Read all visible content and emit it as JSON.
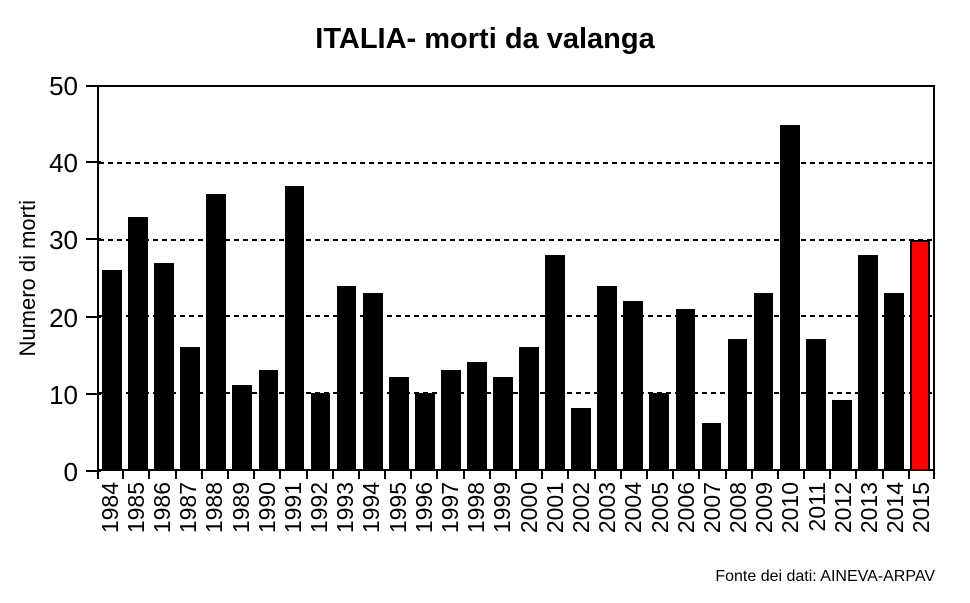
{
  "title": "ITALIA- morti da valanga",
  "footer": {
    "source_label": "Fonte dei dati: AINEVA-ARPAV"
  },
  "colors": {
    "bar": "#000000",
    "highlight": "#FF0000",
    "axis": "#000000",
    "background": "#FFFFFF"
  },
  "chart_data": {
    "type": "bar",
    "title": "ITALIA- morti da valanga",
    "xlabel": "",
    "ylabel": "Numero di morti",
    "ylim": [
      0,
      50
    ],
    "ytick_interval": 10,
    "yticks": [
      0,
      10,
      20,
      30,
      40,
      50
    ],
    "grid": "horizontal dashed black lines at 10, 20, 30, 40",
    "legend": "none",
    "categories": [
      "1984",
      "1985",
      "1986",
      "1987",
      "1988",
      "1989",
      "1990",
      "1991",
      "1992",
      "1993",
      "1994",
      "1995",
      "1996",
      "1997",
      "1998",
      "1999",
      "2000",
      "2001",
      "2002",
      "2003",
      "2004",
      "2005",
      "2006",
      "2007",
      "2008",
      "2009",
      "2010",
      "2011",
      "2012",
      "2013",
      "2014",
      "2015"
    ],
    "values": [
      26,
      33,
      27,
      16,
      36,
      11,
      13,
      37,
      10,
      24,
      23,
      12,
      10,
      13,
      14,
      12,
      16,
      28,
      8,
      24,
      22,
      10,
      21,
      6,
      17,
      23,
      45,
      17,
      9,
      28,
      23,
      30
    ],
    "bar_color": "#000000",
    "highlight_category": "2015",
    "highlight_color": "#FF0000",
    "source": "Fonte dei dati: AINEVA-ARPAV"
  }
}
